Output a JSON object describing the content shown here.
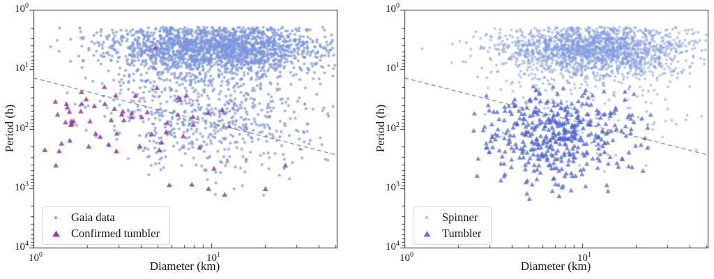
{
  "figure": {
    "background": "#ffffff"
  },
  "chart_data": [
    {
      "type": "scatter",
      "panel": "left",
      "xlabel": "Diameter (km)",
      "ylabel": "Period (h)",
      "x_scale": "log",
      "y_scale": "log",
      "y_inverted": true,
      "x_range": [
        1,
        50.8
      ],
      "y_range": [
        1,
        10000
      ],
      "tick_base": "10",
      "x_ticks": [
        {
          "v": 1,
          "exp": "0"
        },
        {
          "v": 10,
          "exp": "1"
        }
      ],
      "y_ticks": [
        {
          "v": 1,
          "exp": "0"
        },
        {
          "v": 10,
          "exp": "1"
        },
        {
          "v": 100,
          "exp": "2"
        },
        {
          "v": 1000,
          "exp": "3"
        },
        {
          "v": 10000,
          "exp": "4"
        }
      ],
      "dashed_line": {
        "x1": 1,
        "p1": 14,
        "x2": 50.8,
        "p2": 276,
        "color": "#5a5a5a"
      },
      "legend": {
        "position": "lower-left"
      },
      "series": [
        {
          "name": "Gaia data",
          "marker": "circle",
          "color": "#7b94da",
          "opacity": 0.72,
          "size": 2.1,
          "seed": 20240101,
          "clusters": [
            {
              "n": 1900,
              "mx": 1.02,
              "sx": 0.3,
              "my": 0.63,
              "sy": 0.24,
              "cx": [
                0.1,
                1.7
              ],
              "cy": [
                0.29,
                1.3
              ]
            },
            {
              "n": 620,
              "mx": 1.02,
              "sx": 0.31,
              "my": 1.72,
              "sy": 0.52,
              "cx": [
                0.18,
                1.7
              ],
              "cy": [
                1.05,
                3.35
              ]
            }
          ],
          "outliers": [
            [
              1.25,
              4.2
            ],
            [
              1.55,
              25
            ]
          ]
        },
        {
          "name": "Confirmed tumbler",
          "marker": "triangle",
          "color": "#8a3d9c",
          "opacity": 0.85,
          "size": 4.2,
          "seed": 777,
          "clusters": [
            {
              "n": 58,
              "mx": 0.42,
              "sx": 0.34,
              "my": 1.92,
              "sy": 0.34,
              "cx": [
                0.02,
                1.52
              ],
              "cy": [
                1.25,
                2.85
              ]
            },
            {
              "n": 7,
              "mx": 1.15,
              "sx": 0.22,
              "my": 2.95,
              "sy": 0.18,
              "cx": [
                0.6,
                1.55
              ],
              "cy": [
                2.6,
                3.2
              ]
            }
          ],
          "outliers": [
            [
              4.85,
              4.3
            ]
          ]
        }
      ]
    },
    {
      "type": "scatter",
      "panel": "right",
      "xlabel": "Diameter (km)",
      "ylabel": "Period (h)",
      "x_scale": "log",
      "y_scale": "log",
      "y_inverted": true,
      "x_range": [
        1,
        50.8
      ],
      "y_range": [
        1,
        10000
      ],
      "tick_base": "10",
      "x_ticks": [
        {
          "v": 1,
          "exp": "0"
        },
        {
          "v": 10,
          "exp": "1"
        }
      ],
      "y_ticks": [
        {
          "v": 1,
          "exp": "0"
        },
        {
          "v": 10,
          "exp": "1"
        },
        {
          "v": 100,
          "exp": "2"
        },
        {
          "v": 1000,
          "exp": "3"
        },
        {
          "v": 10000,
          "exp": "4"
        }
      ],
      "dashed_line": {
        "x1": 1,
        "p1": 14,
        "x2": 50.8,
        "p2": 276,
        "color": "#5a5a5a"
      },
      "legend": {
        "position": "lower-left"
      },
      "series": [
        {
          "name": "Spinner",
          "marker": "circle",
          "color": "#8099dd",
          "opacity": 0.55,
          "size": 2.0,
          "seed": 555001,
          "clusters": [
            {
              "n": 1750,
              "mx": 1.06,
              "sx": 0.27,
              "my": 0.66,
              "sy": 0.24,
              "cx": [
                0.25,
                1.7
              ],
              "cy": [
                0.29,
                1.3
              ]
            },
            {
              "n": 160,
              "mx": 1.05,
              "sx": 0.3,
              "my": 1.6,
              "sy": 0.45,
              "cx": [
                0.3,
                1.7
              ],
              "cy": [
                1.05,
                3.1
              ]
            }
          ],
          "outliers": [
            [
              1.26,
              4.5
            ]
          ]
        },
        {
          "name": "Tumbler",
          "marker": "triangle",
          "color": "#5064cf",
          "opacity": 0.78,
          "size": 3.8,
          "seed": 90210,
          "clusters": [
            {
              "n": 430,
              "mx": 0.85,
              "sx": 0.23,
              "my": 2.12,
              "sy": 0.4,
              "cx": [
                0.32,
                1.42
              ],
              "cy": [
                1.28,
                3.4
              ]
            }
          ],
          "outliers": []
        }
      ]
    }
  ]
}
